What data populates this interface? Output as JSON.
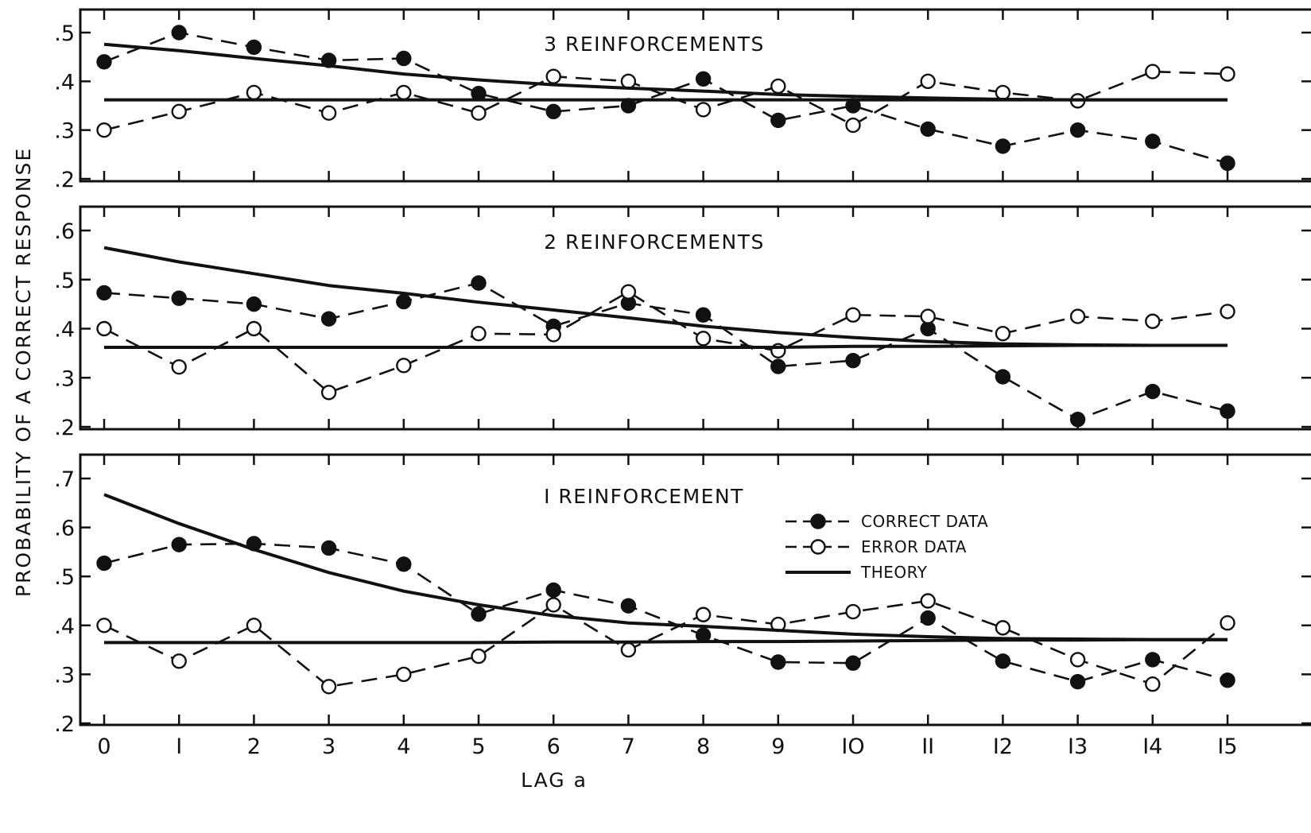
{
  "chart_data": {
    "type": "line",
    "xlabel": "LAG a",
    "ylabel": "PROBABILITY OF A CORRECT RESPONSE",
    "x": [
      0,
      1,
      2,
      3,
      4,
      5,
      6,
      7,
      8,
      9,
      10,
      11,
      12,
      13,
      14,
      15
    ],
    "x_tick_labels": [
      "0",
      "I",
      "2",
      "3",
      "4",
      "5",
      "6",
      "7",
      "8",
      "9",
      "IO",
      "II",
      "I2",
      "I3",
      "I4",
      "I5"
    ],
    "legend": {
      "placement": "inside bottom panel, right of center",
      "entries": [
        "CORRECT DATA",
        "ERROR DATA",
        "THEORY"
      ]
    },
    "grid": false,
    "panels": [
      {
        "title": "3 REINFORCEMENTS",
        "ylim": [
          0.2,
          0.53
        ],
        "y_ticks": [
          0.2,
          0.3,
          0.4,
          0.5
        ],
        "y_tick_labels": [
          ".2",
          ".3",
          ".4",
          ".5"
        ],
        "series": [
          {
            "name": "CORRECT DATA",
            "marker": "filled",
            "values": [
              0.44,
              0.5,
              0.47,
              0.443,
              0.447,
              0.375,
              0.338,
              0.35,
              0.405,
              0.32,
              0.35,
              0.302,
              0.267,
              0.3,
              0.277,
              0.232
            ]
          },
          {
            "name": "ERROR DATA",
            "marker": "open",
            "values": [
              0.3,
              0.338,
              0.377,
              0.335,
              0.377,
              0.335,
              0.41,
              0.4,
              0.342,
              0.39,
              0.31,
              0.4,
              0.377,
              0.36,
              0.42,
              0.415
            ]
          },
          {
            "name": "THEORY",
            "values": [
              0.476,
              0.463,
              0.447,
              0.432,
              0.415,
              0.403,
              0.393,
              0.386,
              0.38,
              0.373,
              0.369,
              0.366,
              0.363,
              0.362,
              0.362,
              0.362
            ]
          },
          {
            "name": "THEORY",
            "values": [
              0.362,
              0.362,
              0.362,
              0.362,
              0.362,
              0.362,
              0.362,
              0.362,
              0.362,
              0.362,
              0.362,
              0.362,
              0.362,
              0.362,
              0.362,
              0.362
            ]
          }
        ]
      },
      {
        "title": "2 REINFORCEMENTS",
        "ylim": [
          0.2,
          0.655
        ],
        "y_ticks": [
          0.2,
          0.3,
          0.4,
          0.5,
          0.6
        ],
        "y_tick_labels": [
          ".2",
          ".3",
          ".4",
          ".5",
          ".6"
        ],
        "series": [
          {
            "name": "CORRECT DATA",
            "marker": "filled",
            "values": [
              0.473,
              0.462,
              0.45,
              0.42,
              0.455,
              0.493,
              0.405,
              0.452,
              0.428,
              0.323,
              0.335,
              0.4,
              0.302,
              0.215,
              0.272,
              0.232
            ]
          },
          {
            "name": "ERROR DATA",
            "marker": "open",
            "values": [
              0.4,
              0.322,
              0.4,
              0.27,
              0.325,
              0.39,
              0.388,
              0.475,
              0.38,
              0.355,
              0.428,
              0.425,
              0.39,
              0.425,
              0.415,
              0.435
            ]
          },
          {
            "name": "THEORY",
            "values": [
              0.565,
              0.536,
              0.512,
              0.488,
              0.472,
              0.454,
              0.438,
              0.422,
              0.405,
              0.392,
              0.382,
              0.374,
              0.369,
              0.367,
              0.366,
              0.366
            ]
          },
          {
            "name": "THEORY",
            "values": [
              0.362,
              0.362,
              0.362,
              0.362,
              0.362,
              0.362,
              0.362,
              0.362,
              0.362,
              0.362,
              0.364,
              0.364,
              0.365,
              0.366,
              0.366,
              0.366
            ]
          }
        ]
      },
      {
        "title": "I REINFORCEMENT",
        "ylim": [
          0.2,
          0.75
        ],
        "y_ticks": [
          0.2,
          0.3,
          0.4,
          0.5,
          0.6,
          0.7
        ],
        "y_tick_labels": [
          ".2",
          ".3",
          ".4",
          ".5",
          ".6",
          ".7"
        ],
        "series": [
          {
            "name": "CORRECT DATA",
            "marker": "filled",
            "values": [
              0.527,
              0.565,
              0.567,
              0.558,
              0.525,
              0.423,
              0.472,
              0.44,
              0.38,
              0.325,
              0.323,
              0.415,
              0.327,
              0.285,
              0.33,
              0.288
            ]
          },
          {
            "name": "ERROR DATA",
            "marker": "open",
            "values": [
              0.4,
              0.327,
              0.4,
              0.275,
              0.3,
              0.337,
              0.442,
              0.35,
              0.422,
              0.402,
              0.428,
              0.45,
              0.395,
              0.33,
              0.28,
              0.405
            ]
          },
          {
            "name": "THEORY",
            "values": [
              0.667,
              0.608,
              0.555,
              0.508,
              0.47,
              0.442,
              0.42,
              0.405,
              0.398,
              0.39,
              0.382,
              0.377,
              0.373,
              0.372,
              0.371,
              0.371
            ]
          },
          {
            "name": "THEORY",
            "values": [
              0.365,
              0.365,
              0.365,
              0.365,
              0.365,
              0.365,
              0.366,
              0.366,
              0.367,
              0.367,
              0.368,
              0.369,
              0.37,
              0.37,
              0.371,
              0.371
            ]
          }
        ]
      }
    ]
  }
}
